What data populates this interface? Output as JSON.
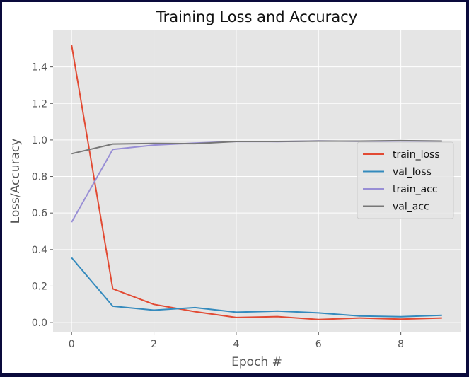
{
  "chart_data": {
    "type": "line",
    "title": "Training Loss and Accuracy",
    "xlabel": "Epoch #",
    "ylabel": "Loss/Accuracy",
    "x": [
      0,
      1,
      2,
      3,
      4,
      5,
      6,
      7,
      8,
      9
    ],
    "xlim": [
      -0.45,
      9.45
    ],
    "ylim": [
      -0.05,
      1.6
    ],
    "xticks": [
      0,
      2,
      4,
      6,
      8
    ],
    "yticks": [
      0.0,
      0.2,
      0.4,
      0.6,
      0.8,
      1.0,
      1.2,
      1.4
    ],
    "xtick_labels": [
      "0",
      "2",
      "4",
      "6",
      "8"
    ],
    "ytick_labels": [
      "0.0",
      "0.2",
      "0.4",
      "0.6",
      "0.8",
      "1.0",
      "1.2",
      "1.4"
    ],
    "grid": true,
    "style": "ggplot",
    "legend_position": "center-right",
    "series": [
      {
        "name": "train_loss",
        "color": "#E24A33",
        "values": [
          1.52,
          0.185,
          0.1,
          0.06,
          0.028,
          0.033,
          0.017,
          0.025,
          0.019,
          0.025
        ]
      },
      {
        "name": "val_loss",
        "color": "#348ABD",
        "values": [
          0.355,
          0.09,
          0.068,
          0.082,
          0.057,
          0.063,
          0.053,
          0.036,
          0.032,
          0.04
        ]
      },
      {
        "name": "train_acc",
        "color": "#988ED5",
        "values": [
          0.55,
          0.948,
          0.972,
          0.983,
          0.992,
          0.991,
          0.995,
          0.993,
          0.995,
          0.994
        ]
      },
      {
        "name": "val_acc",
        "color": "#777777",
        "values": [
          0.925,
          0.978,
          0.981,
          0.98,
          0.992,
          0.992,
          0.994,
          0.994,
          0.996,
          0.994
        ]
      }
    ]
  }
}
